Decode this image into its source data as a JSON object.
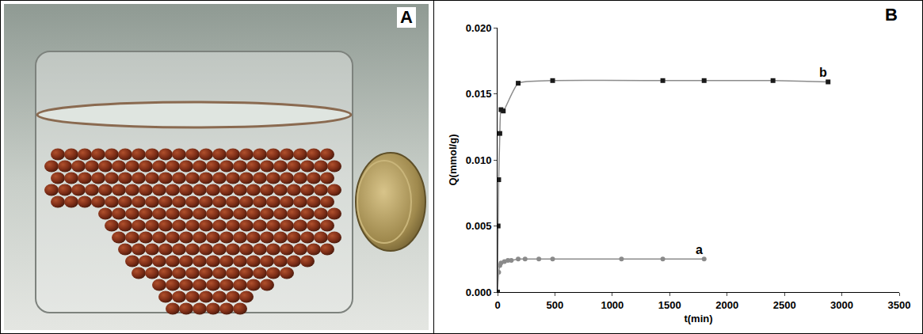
{
  "photo_panel": {
    "label": "A"
  },
  "chart_data": {
    "type": "scatter",
    "panel_label": "B",
    "x_label": "t(min)",
    "y_label": "Q(mmol/g)",
    "xlim": [
      0,
      3500
    ],
    "xticks": [
      0,
      500,
      1000,
      1500,
      2000,
      2500,
      3000,
      3500
    ],
    "ylim": [
      0,
      0.02
    ],
    "yticks": [
      {
        "value": 0,
        "label": "0.000"
      },
      0.005,
      {
        "value": 0.01,
        "label": "0.010"
      },
      0.015,
      {
        "value": 0.02,
        "label": "0.020"
      }
    ],
    "grid": false,
    "line_style": "solid",
    "series": [
      {
        "name": "a",
        "color": "#8a8a8a",
        "marker": "circle",
        "x": [
          0,
          10,
          20,
          30,
          60,
          90,
          120,
          180,
          240,
          360,
          480,
          1080,
          1440,
          1800
        ],
        "values": [
          0,
          0.0015,
          0.002,
          0.0022,
          0.0023,
          0.0024,
          0.0024,
          0.0025,
          0.0025,
          0.0025,
          0.0025,
          0.0025,
          0.0025,
          0.0025
        ]
      },
      {
        "name": "b",
        "color": "#1a1a1a",
        "marker": "square",
        "x": [
          0,
          5,
          10,
          20,
          30,
          50,
          180,
          480,
          1440,
          1800,
          2400,
          2880
        ],
        "values": [
          0,
          0.005,
          0.0085,
          0.012,
          0.0138,
          0.0137,
          0.0158,
          0.016,
          0.016,
          0.016,
          0.016,
          0.0159
        ]
      }
    ]
  }
}
